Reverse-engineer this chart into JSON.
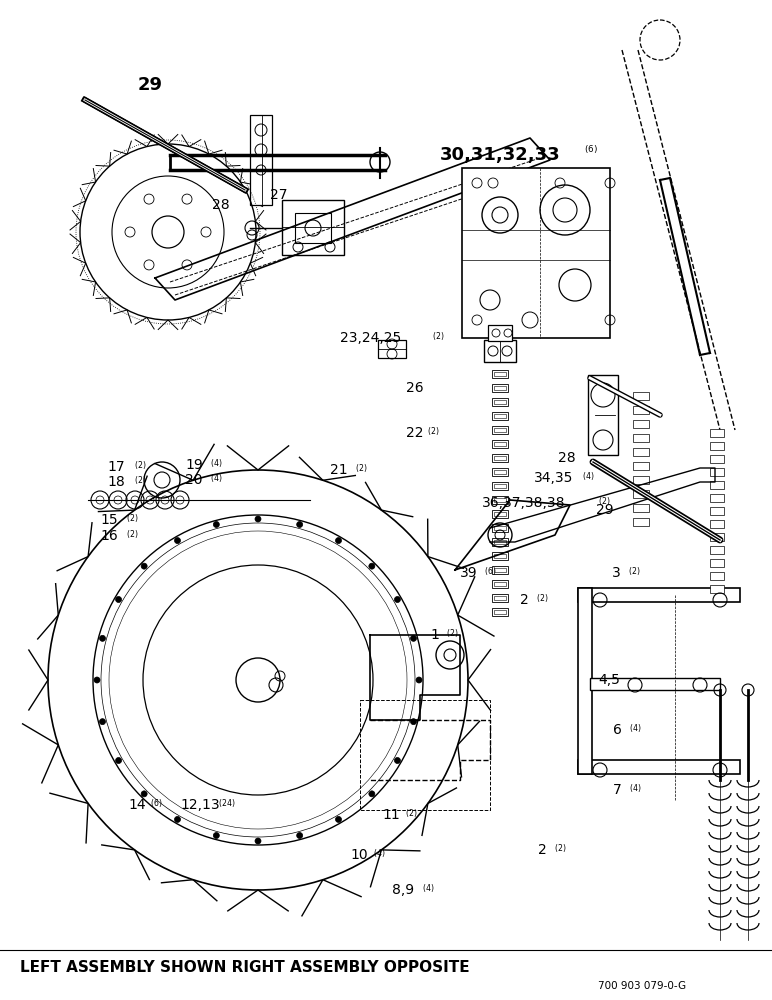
{
  "bottom_text": "LEFT ASSEMBLY SHOWN RIGHT ASSEMBLY OPPOSITE",
  "part_number": "700 903 079-0-G",
  "background_color": "#ffffff",
  "fig_width": 7.72,
  "fig_height": 10.0,
  "dpi": 100
}
